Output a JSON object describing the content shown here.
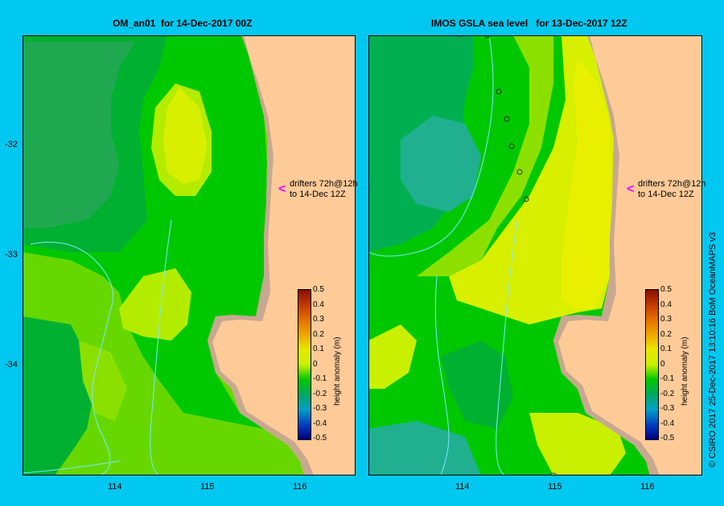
{
  "panels": [
    {
      "title": "OM_an01  for 14-Dec-2017 00Z"
    },
    {
      "title": "IMOS GSLA sea level   for 13-Dec-2017 12Z"
    }
  ],
  "y_ticks": [
    "-32",
    "-33",
    "-34"
  ],
  "x_ticks": [
    "114",
    "115",
    "116"
  ],
  "colorbar": {
    "title": "height anomaly (m)",
    "ticks": [
      "0.5",
      "0.4",
      "0.3",
      "0.2",
      "0.1",
      "0",
      "-0.1",
      "-0.2",
      "-0.3",
      "-0.4",
      "-0.5"
    ],
    "range": [
      -0.5,
      0.5
    ]
  },
  "drifters": {
    "line1": "drifters 72h@12h",
    "line2": "to 14-Dec 12Z"
  },
  "credit": "© CSIRO 2017   25-Dec-2017 13:10:16 BoM OceanMAPS v3",
  "colors": {
    "background": "#00c8f0",
    "land": "#fecb98",
    "coast": "#c8a890",
    "contour": "#7fe6ff",
    "drifter_arrow": "#ff00ff"
  }
}
